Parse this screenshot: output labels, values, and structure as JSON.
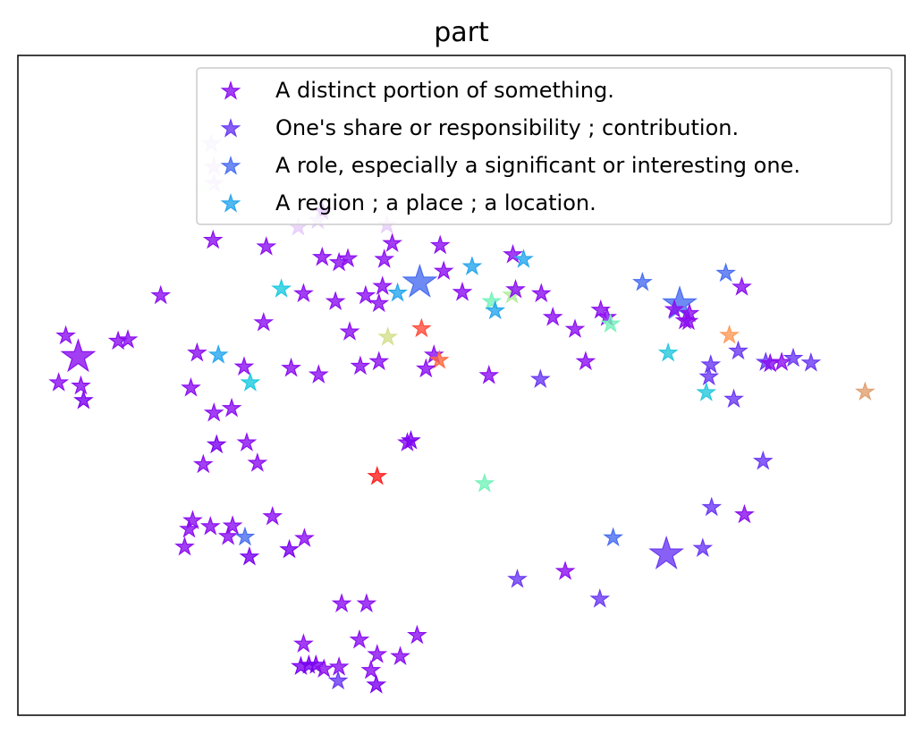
{
  "chart_data": {
    "type": "scatter",
    "title": "part",
    "xlabel": "",
    "ylabel": "",
    "xlim": [
      0,
      100
    ],
    "ylim": [
      0,
      100
    ],
    "grid": false,
    "ticks": false,
    "marker": "star",
    "legend_placement": "upper-right",
    "legend": [
      {
        "label": "A distinct portion of something.",
        "color": "#8b0ff0"
      },
      {
        "label": "One's share or responsibility ; contribution.",
        "color": "#6a38f2"
      },
      {
        "label": "A role, especially a significant or interesting one.",
        "color": "#4a6ef0"
      },
      {
        "label": "A region ; a place ; a location.",
        "color": "#26a6ee"
      }
    ],
    "points": [
      {
        "x": 6.8,
        "y": 54.3,
        "c": "#8b0ff0",
        "big": true
      },
      {
        "x": 5.4,
        "y": 57.5,
        "c": "#8b0ff0"
      },
      {
        "x": 4.6,
        "y": 50.4,
        "c": "#8b0ff0"
      },
      {
        "x": 7.1,
        "y": 49.9,
        "c": "#8b0ff0"
      },
      {
        "x": 7.4,
        "y": 47.7,
        "c": "#7a00f0"
      },
      {
        "x": 11.3,
        "y": 56.7,
        "c": "#8b0ff0"
      },
      {
        "x": 12.4,
        "y": 56.9,
        "c": "#8b0ff0"
      },
      {
        "x": 16.1,
        "y": 63.6,
        "c": "#8b0ff0"
      },
      {
        "x": 20.2,
        "y": 54.9,
        "c": "#8b0ff0"
      },
      {
        "x": 22.6,
        "y": 54.6,
        "c": "#26a6ee"
      },
      {
        "x": 19.5,
        "y": 49.6,
        "c": "#8b0ff0"
      },
      {
        "x": 22.1,
        "y": 45.8,
        "c": "#8b0ff0"
      },
      {
        "x": 24.1,
        "y": 46.5,
        "c": "#8b0ff0"
      },
      {
        "x": 25.5,
        "y": 52.8,
        "c": "#8b0ff0"
      },
      {
        "x": 26.2,
        "y": 50.4,
        "c": "#1ccae0"
      },
      {
        "x": 27.7,
        "y": 59.5,
        "c": "#8b0ff0"
      },
      {
        "x": 22.4,
        "y": 41.0,
        "c": "#7a00f0"
      },
      {
        "x": 20.9,
        "y": 38.0,
        "c": "#8b0ff0"
      },
      {
        "x": 25.8,
        "y": 41.3,
        "c": "#8b0ff0"
      },
      {
        "x": 27.0,
        "y": 38.2,
        "c": "#8b0ff0"
      },
      {
        "x": 43.9,
        "y": 41.3,
        "c": "#8b0ff0"
      },
      {
        "x": 44.3,
        "y": 41.6,
        "c": "#7a00f0"
      },
      {
        "x": 40.5,
        "y": 36.2,
        "c": "#ff2020"
      },
      {
        "x": 19.7,
        "y": 29.5,
        "c": "#8b0ff0"
      },
      {
        "x": 19.3,
        "y": 28.2,
        "c": "#8b0ff0"
      },
      {
        "x": 18.8,
        "y": 25.5,
        "c": "#8b0ff0"
      },
      {
        "x": 21.7,
        "y": 28.6,
        "c": "#8b0ff0"
      },
      {
        "x": 23.7,
        "y": 27.1,
        "c": "#8b0ff0"
      },
      {
        "x": 24.2,
        "y": 28.7,
        "c": "#8b0ff0"
      },
      {
        "x": 25.6,
        "y": 27.0,
        "c": "#4a6ef0"
      },
      {
        "x": 26.1,
        "y": 24.0,
        "c": "#7a00f0"
      },
      {
        "x": 28.7,
        "y": 30.1,
        "c": "#8b0ff0"
      },
      {
        "x": 30.6,
        "y": 25.1,
        "c": "#7a00f0"
      },
      {
        "x": 32.3,
        "y": 26.8,
        "c": "#8b0ff0"
      },
      {
        "x": 36.5,
        "y": 16.9,
        "c": "#8b0ff0"
      },
      {
        "x": 39.3,
        "y": 16.9,
        "c": "#8b0ff0"
      },
      {
        "x": 32.2,
        "y": 10.8,
        "c": "#8b0ff0"
      },
      {
        "x": 31.9,
        "y": 7.4,
        "c": "#7a00f0"
      },
      {
        "x": 32.8,
        "y": 7.6,
        "c": "#7a00f0"
      },
      {
        "x": 33.6,
        "y": 7.6,
        "c": "#7a00f0"
      },
      {
        "x": 34.5,
        "y": 7.0,
        "c": "#8b0ff0"
      },
      {
        "x": 36.2,
        "y": 7.3,
        "c": "#8b0ff0"
      },
      {
        "x": 36.1,
        "y": 5.2,
        "c": "#6a38f2"
      },
      {
        "x": 38.5,
        "y": 11.4,
        "c": "#8b0ff0"
      },
      {
        "x": 39.8,
        "y": 6.8,
        "c": "#8b0ff0"
      },
      {
        "x": 40.5,
        "y": 9.2,
        "c": "#8b0ff0"
      },
      {
        "x": 40.4,
        "y": 4.6,
        "c": "#7a00f0"
      },
      {
        "x": 43.1,
        "y": 8.9,
        "c": "#8b0ff0"
      },
      {
        "x": 45.0,
        "y": 12.1,
        "c": "#8b0ff0"
      },
      {
        "x": 22.0,
        "y": 72.0,
        "c": "#8b0ff0"
      },
      {
        "x": 28.0,
        "y": 71.0,
        "c": "#8b0ff0"
      },
      {
        "x": 31.6,
        "y": 74.0,
        "c": "#e6ccfa"
      },
      {
        "x": 34.3,
        "y": 76.4,
        "c": "#8b0ff0"
      },
      {
        "x": 33.8,
        "y": 75.0,
        "c": "#e6ccfa"
      },
      {
        "x": 34.3,
        "y": 69.4,
        "c": "#8b0ff0"
      },
      {
        "x": 36.2,
        "y": 68.6,
        "c": "#8b0ff0"
      },
      {
        "x": 37.2,
        "y": 69.2,
        "c": "#8b0ff0"
      },
      {
        "x": 41.3,
        "y": 69.1,
        "c": "#8b0ff0"
      },
      {
        "x": 41.6,
        "y": 74.3,
        "c": "#e6ccfa"
      },
      {
        "x": 42.2,
        "y": 71.5,
        "c": "#8b0ff0"
      },
      {
        "x": 47.6,
        "y": 71.2,
        "c": "#8b0ff0"
      },
      {
        "x": 29.7,
        "y": 64.6,
        "c": "#1ccae0"
      },
      {
        "x": 32.2,
        "y": 63.9,
        "c": "#8b0ff0"
      },
      {
        "x": 35.8,
        "y": 62.7,
        "c": "#8b0ff0"
      },
      {
        "x": 39.2,
        "y": 63.6,
        "c": "#8b0ff0"
      },
      {
        "x": 40.7,
        "y": 62.4,
        "c": "#8b0ff0"
      },
      {
        "x": 41.1,
        "y": 65.0,
        "c": "#8b0ff0"
      },
      {
        "x": 42.8,
        "y": 64.0,
        "c": "#26a6ee"
      },
      {
        "x": 45.3,
        "y": 65.6,
        "c": "#4a6ef0",
        "big": true
      },
      {
        "x": 48.0,
        "y": 67.3,
        "c": "#8b0ff0"
      },
      {
        "x": 51.2,
        "y": 68.0,
        "c": "#26a6ee"
      },
      {
        "x": 50.1,
        "y": 64.1,
        "c": "#8b0ff0"
      },
      {
        "x": 37.4,
        "y": 58.1,
        "c": "#8b0ff0"
      },
      {
        "x": 41.7,
        "y": 57.3,
        "c": "#d4e08c"
      },
      {
        "x": 45.5,
        "y": 58.6,
        "c": "#ff4d3b"
      },
      {
        "x": 46.9,
        "y": 54.6,
        "c": "#8b0ff0"
      },
      {
        "x": 47.5,
        "y": 53.8,
        "c": "#ff6840"
      },
      {
        "x": 46.0,
        "y": 52.5,
        "c": "#8b0ff0"
      },
      {
        "x": 40.7,
        "y": 53.6,
        "c": "#8b0ff0"
      },
      {
        "x": 38.6,
        "y": 52.9,
        "c": "#8b0ff0"
      },
      {
        "x": 33.9,
        "y": 51.6,
        "c": "#8b0ff0"
      },
      {
        "x": 30.8,
        "y": 52.6,
        "c": "#8b0ff0"
      },
      {
        "x": 53.1,
        "y": 51.5,
        "c": "#8b0ff0"
      },
      {
        "x": 53.4,
        "y": 62.7,
        "c": "#74f2ba"
      },
      {
        "x": 53.8,
        "y": 61.3,
        "c": "#26a6ee"
      },
      {
        "x": 55.7,
        "y": 63.7,
        "c": "#b0ee9e"
      },
      {
        "x": 56.1,
        "y": 64.5,
        "c": "#8b0ff0"
      },
      {
        "x": 55.8,
        "y": 69.8,
        "c": "#8b0ff0"
      },
      {
        "x": 57.0,
        "y": 69.1,
        "c": "#26a6ee"
      },
      {
        "x": 59.0,
        "y": 63.9,
        "c": "#8b0ff0"
      },
      {
        "x": 60.3,
        "y": 60.3,
        "c": "#8b0ff0"
      },
      {
        "x": 58.9,
        "y": 50.9,
        "c": "#6a38f2"
      },
      {
        "x": 62.8,
        "y": 58.5,
        "c": "#8b0ff0"
      },
      {
        "x": 64.0,
        "y": 53.6,
        "c": "#8b0ff0"
      },
      {
        "x": 65.7,
        "y": 61.4,
        "c": "#8b0ff0"
      },
      {
        "x": 66.4,
        "y": 60.3,
        "c": "#8b0ff0"
      },
      {
        "x": 66.8,
        "y": 59.3,
        "c": "#74f2ba"
      },
      {
        "x": 70.4,
        "y": 65.6,
        "c": "#4a6ef0"
      },
      {
        "x": 74.6,
        "y": 62.3,
        "c": "#4a6ef0",
        "big": true
      },
      {
        "x": 74.0,
        "y": 61.5,
        "c": "#8b0ff0"
      },
      {
        "x": 75.7,
        "y": 60.9,
        "c": "#8b0ff0"
      },
      {
        "x": 75.2,
        "y": 59.8,
        "c": "#8b0ff0"
      },
      {
        "x": 75.6,
        "y": 59.7,
        "c": "#8b0ff0"
      },
      {
        "x": 73.3,
        "y": 54.9,
        "c": "#26c8dd"
      },
      {
        "x": 79.8,
        "y": 67.0,
        "c": "#4a6ef0"
      },
      {
        "x": 81.6,
        "y": 64.9,
        "c": "#8b0ff0"
      },
      {
        "x": 80.2,
        "y": 57.6,
        "c": "#ff9a5a"
      },
      {
        "x": 81.2,
        "y": 55.2,
        "c": "#6a38f2"
      },
      {
        "x": 78.1,
        "y": 53.1,
        "c": "#6a38f2"
      },
      {
        "x": 77.9,
        "y": 51.3,
        "c": "#6a38f2"
      },
      {
        "x": 77.6,
        "y": 48.9,
        "c": "#26c8dd"
      },
      {
        "x": 80.7,
        "y": 47.9,
        "c": "#6a38f2"
      },
      {
        "x": 84.3,
        "y": 53.5,
        "c": "#6a38f2"
      },
      {
        "x": 84.8,
        "y": 53.3,
        "c": "#8b0ff0"
      },
      {
        "x": 86.1,
        "y": 53.5,
        "c": "#8b0ff0"
      },
      {
        "x": 87.4,
        "y": 54.1,
        "c": "#6a38f2"
      },
      {
        "x": 89.4,
        "y": 53.4,
        "c": "#6a38f2"
      },
      {
        "x": 95.5,
        "y": 49.0,
        "c": "#e0a070"
      },
      {
        "x": 84.0,
        "y": 38.5,
        "c": "#6a38f2"
      },
      {
        "x": 78.2,
        "y": 31.5,
        "c": "#6a38f2"
      },
      {
        "x": 81.9,
        "y": 30.4,
        "c": "#8b0ff0"
      },
      {
        "x": 67.1,
        "y": 26.9,
        "c": "#4a6ef0"
      },
      {
        "x": 73.1,
        "y": 24.4,
        "c": "#6a38f2",
        "big": true
      },
      {
        "x": 77.2,
        "y": 25.3,
        "c": "#6a38f2"
      },
      {
        "x": 61.7,
        "y": 21.8,
        "c": "#8b0ff0"
      },
      {
        "x": 56.3,
        "y": 20.6,
        "c": "#6a38f2"
      },
      {
        "x": 65.6,
        "y": 17.6,
        "c": "#6a38f2"
      },
      {
        "x": 52.6,
        "y": 35.1,
        "c": "#74f2ba"
      },
      {
        "x": 22.1,
        "y": 83.1,
        "c": "#e6ccfa"
      },
      {
        "x": 21.8,
        "y": 86.6,
        "c": "#d8d8fa"
      },
      {
        "x": 22.1,
        "y": 80.6,
        "c": "#e6ccfa"
      },
      {
        "x": 21.1,
        "y": 80.0,
        "c": "#ecfcec"
      }
    ]
  }
}
